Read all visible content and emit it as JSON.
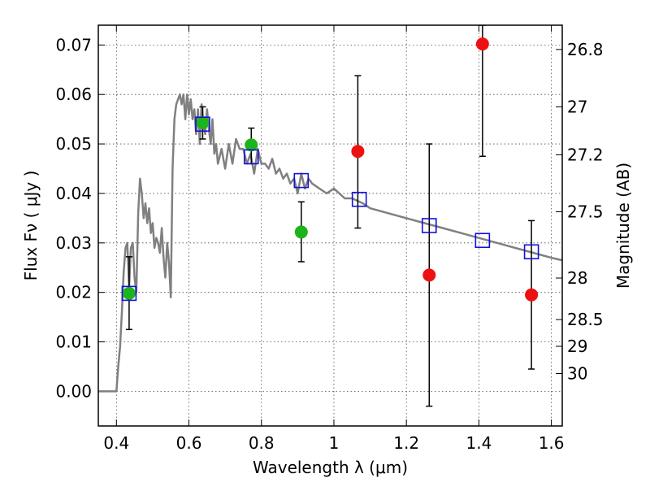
{
  "chart_data": {
    "type": "scatter",
    "xlabel": "Wavelength  λ (μm)",
    "ylabel": "Flux  Fν  ( μJy )",
    "y2label": "Magnitude (AB)",
    "xlim": [
      0.35,
      1.63
    ],
    "ylim": [
      -0.007,
      0.074
    ],
    "xticks": [
      0.4,
      0.6,
      0.8,
      1.0,
      1.2,
      1.4,
      1.6
    ],
    "xtick_labels": [
      "0.4",
      "0.6",
      "0.8",
      "1",
      "1.2",
      "1.4",
      "1.6"
    ],
    "yticks": [
      0.0,
      0.01,
      0.02,
      0.03,
      0.04,
      0.05,
      0.06,
      0.07
    ],
    "ytick_labels": [
      "0.00",
      "0.01",
      "0.02",
      "0.03",
      "0.04",
      "0.05",
      "0.06",
      "0.07"
    ],
    "y2ticks": [
      {
        "label": "26.8",
        "flux": 0.0691
      },
      {
        "label": "27",
        "flux": 0.0575
      },
      {
        "label": "27.2",
        "flux": 0.0478
      },
      {
        "label": "27.5",
        "flux": 0.0363
      },
      {
        "label": "28",
        "flux": 0.0229
      },
      {
        "label": "28.5",
        "flux": 0.0145
      },
      {
        "label": "29",
        "flux": 0.0091
      },
      {
        "label": "30",
        "flux": 0.0036
      }
    ],
    "grid": true,
    "series": [
      {
        "kind": "line",
        "color": "#808080",
        "x": [
          0.35,
          0.4,
          0.405,
          0.41,
          0.415,
          0.42,
          0.425,
          0.43,
          0.435,
          0.44,
          0.445,
          0.45,
          0.455,
          0.46,
          0.465,
          0.47,
          0.475,
          0.48,
          0.485,
          0.49,
          0.495,
          0.5,
          0.505,
          0.51,
          0.515,
          0.52,
          0.525,
          0.53,
          0.535,
          0.54,
          0.545,
          0.55,
          0.555,
          0.56,
          0.565,
          0.57,
          0.575,
          0.58,
          0.585,
          0.59,
          0.595,
          0.6,
          0.605,
          0.61,
          0.615,
          0.62,
          0.625,
          0.63,
          0.635,
          0.64,
          0.645,
          0.65,
          0.655,
          0.66,
          0.665,
          0.67,
          0.675,
          0.68,
          0.69,
          0.7,
          0.71,
          0.72,
          0.73,
          0.74,
          0.75,
          0.76,
          0.77,
          0.78,
          0.79,
          0.8,
          0.81,
          0.82,
          0.83,
          0.84,
          0.85,
          0.86,
          0.87,
          0.88,
          0.89,
          0.9,
          0.91,
          0.92,
          0.93,
          0.94,
          0.96,
          0.98,
          1.0,
          1.03,
          1.05,
          1.08,
          1.1,
          1.15,
          1.2,
          1.25,
          1.3,
          1.35,
          1.4,
          1.45,
          1.5,
          1.55,
          1.6,
          1.63
        ],
        "y": [
          0.0,
          0.0,
          0.005,
          0.009,
          0.016,
          0.024,
          0.029,
          0.03,
          0.021,
          0.029,
          0.03,
          0.023,
          0.02,
          0.036,
          0.043,
          0.04,
          0.035,
          0.038,
          0.034,
          0.037,
          0.032,
          0.034,
          0.029,
          0.031,
          0.03,
          0.028,
          0.033,
          0.027,
          0.023,
          0.03,
          0.026,
          0.019,
          0.045,
          0.055,
          0.058,
          0.059,
          0.06,
          0.058,
          0.06,
          0.055,
          0.06,
          0.056,
          0.059,
          0.055,
          0.057,
          0.052,
          0.057,
          0.05,
          0.058,
          0.054,
          0.052,
          0.057,
          0.053,
          0.05,
          0.055,
          0.048,
          0.05,
          0.046,
          0.049,
          0.045,
          0.05,
          0.046,
          0.051,
          0.049,
          0.049,
          0.046,
          0.048,
          0.044,
          0.049,
          0.046,
          0.046,
          0.045,
          0.047,
          0.044,
          0.045,
          0.043,
          0.044,
          0.042,
          0.043,
          0.04,
          0.044,
          0.041,
          0.043,
          0.042,
          0.041,
          0.04,
          0.041,
          0.039,
          0.039,
          0.038,
          0.037,
          0.036,
          0.035,
          0.034,
          0.033,
          0.032,
          0.031,
          0.03,
          0.029,
          0.028,
          0.027,
          0.0265
        ]
      },
      {
        "kind": "errorbar-circle",
        "color": "#1db31d",
        "points": [
          {
            "x": 0.435,
            "y": 0.0198,
            "lo": 0.0125,
            "hi": 0.0272
          },
          {
            "x": 0.638,
            "y": 0.0543,
            "lo": 0.051,
            "hi": 0.0575
          },
          {
            "x": 0.772,
            "y": 0.0498,
            "lo": 0.046,
            "hi": 0.0532
          },
          {
            "x": 0.91,
            "y": 0.0322,
            "lo": 0.0262,
            "hi": 0.0383
          }
        ]
      },
      {
        "kind": "errorbar-circle",
        "color": "#ee1111",
        "points": [
          {
            "x": 1.066,
            "y": 0.0485,
            "lo": 0.033,
            "hi": 0.0638
          },
          {
            "x": 1.263,
            "y": 0.0235,
            "lo": -0.003,
            "hi": 0.05
          },
          {
            "x": 1.41,
            "y": 0.0702,
            "lo": 0.0475,
            "hi": 0.074
          },
          {
            "x": 1.545,
            "y": 0.0195,
            "lo": 0.0045,
            "hi": 0.0345
          }
        ]
      },
      {
        "kind": "square",
        "color": "#1010dd",
        "points": [
          {
            "x": 0.435,
            "y": 0.0198
          },
          {
            "x": 0.638,
            "y": 0.054
          },
          {
            "x": 0.772,
            "y": 0.0474
          },
          {
            "x": 0.91,
            "y": 0.0426
          },
          {
            "x": 1.07,
            "y": 0.0388
          },
          {
            "x": 1.263,
            "y": 0.0335
          },
          {
            "x": 1.41,
            "y": 0.0305
          },
          {
            "x": 1.545,
            "y": 0.0282
          }
        ]
      }
    ]
  }
}
